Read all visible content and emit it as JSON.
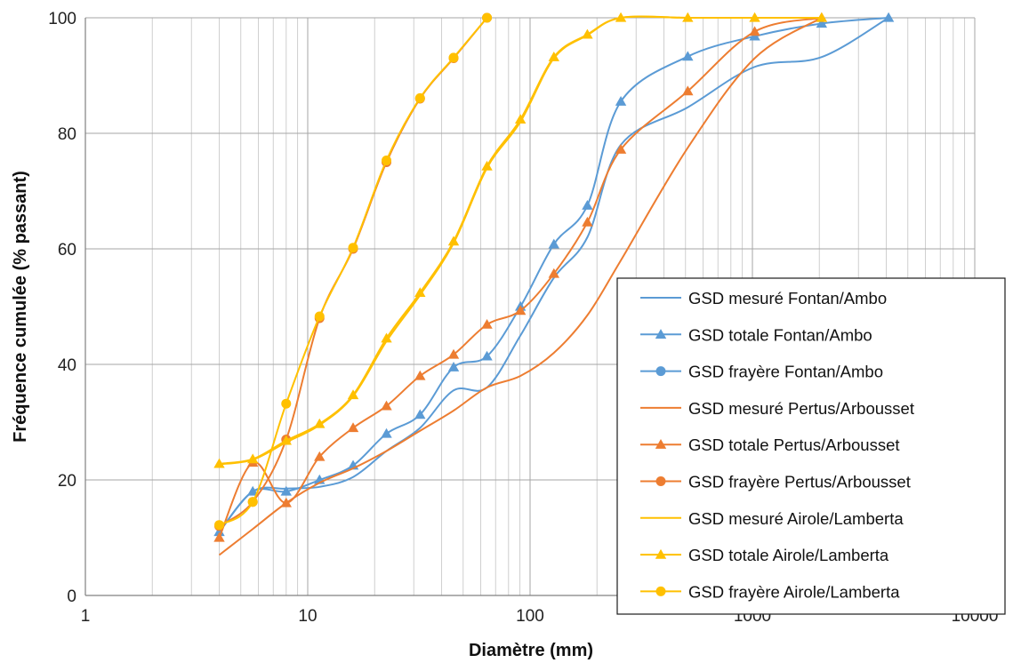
{
  "chart_data": {
    "type": "line",
    "xlabel": "Diamètre (mm)",
    "ylabel": "Fréquence cumulée (% passant)",
    "x_scale": "log",
    "xlim": [
      1,
      10000
    ],
    "ylim": [
      0,
      100
    ],
    "x_ticks": [
      "1",
      "10",
      "100",
      "1000",
      "10000"
    ],
    "y_ticks": [
      "0",
      "20",
      "40",
      "60",
      "80",
      "100"
    ],
    "grid": true,
    "legend_position": "right",
    "series": [
      {
        "name": "GSD mesuré Fontan/Ambo",
        "color": "#5B9BD5",
        "marker": "none",
        "points": [
          [
            4,
            11
          ],
          [
            5.66,
            18
          ],
          [
            8,
            18.5
          ],
          [
            11.3,
            18.8
          ],
          [
            16,
            20.5
          ],
          [
            22.6,
            25
          ],
          [
            32,
            29
          ],
          [
            45.3,
            35.5
          ],
          [
            64,
            36
          ],
          [
            90.5,
            45
          ],
          [
            128,
            55
          ],
          [
            181,
            62
          ],
          [
            256,
            78
          ],
          [
            512,
            84.5
          ],
          [
            1024,
            91.5
          ],
          [
            2048,
            93.2
          ],
          [
            4096,
            100
          ]
        ]
      },
      {
        "name": "GSD totale Fontan/Ambo",
        "color": "#5B9BD5",
        "marker": "triangle",
        "points": [
          [
            4,
            11
          ],
          [
            5.66,
            18
          ],
          [
            8,
            18
          ],
          [
            11.3,
            20
          ],
          [
            16,
            22.5
          ],
          [
            22.6,
            28
          ],
          [
            32,
            31.3
          ],
          [
            45.3,
            39.5
          ],
          [
            64,
            41.4
          ],
          [
            90.5,
            50
          ],
          [
            128,
            60.8
          ],
          [
            181,
            67.5
          ],
          [
            256,
            85.5
          ],
          [
            512,
            93.3
          ],
          [
            1024,
            96.8
          ],
          [
            2048,
            99
          ],
          [
            4096,
            100
          ]
        ]
      },
      {
        "name": "GSD frayère Fontan/Ambo",
        "color": "#5B9BD5",
        "marker": "circle",
        "points": []
      },
      {
        "name": "GSD mesuré Pertus/Arbousset",
        "color": "#ED7D31",
        "marker": "none",
        "points": [
          [
            4,
            7
          ],
          [
            5.66,
            11.5
          ],
          [
            8,
            16
          ],
          [
            11.3,
            19.5
          ],
          [
            16,
            22
          ],
          [
            22.6,
            25
          ],
          [
            32,
            28.5
          ],
          [
            45.3,
            32
          ],
          [
            64,
            36
          ],
          [
            90.5,
            38
          ],
          [
            128,
            42
          ],
          [
            181,
            48.5
          ],
          [
            256,
            58
          ],
          [
            512,
            77.5
          ],
          [
            1024,
            93
          ],
          [
            2048,
            100
          ]
        ]
      },
      {
        "name": "GSD totale Pertus/Arbousset",
        "color": "#ED7D31",
        "marker": "triangle",
        "points": [
          [
            4,
            10
          ],
          [
            5.66,
            23
          ],
          [
            8,
            16
          ],
          [
            11.3,
            24
          ],
          [
            16,
            29
          ],
          [
            22.6,
            32.8
          ],
          [
            32,
            38
          ],
          [
            45.3,
            41.7
          ],
          [
            64,
            46.9
          ],
          [
            90.5,
            49.3
          ],
          [
            128,
            55.7
          ],
          [
            181,
            64.6
          ],
          [
            256,
            77.2
          ],
          [
            512,
            87.3
          ],
          [
            1024,
            97.6
          ],
          [
            2048,
            100
          ]
        ]
      },
      {
        "name": "GSD frayère Pertus/Arbousset",
        "color": "#ED7D31",
        "marker": "circle",
        "points": [
          [
            4,
            12
          ],
          [
            5.66,
            16.2
          ],
          [
            8,
            27
          ],
          [
            11.3,
            48
          ],
          [
            16,
            60
          ],
          [
            22.6,
            75
          ],
          [
            32,
            86
          ],
          [
            45.3,
            93
          ],
          [
            64,
            100
          ]
        ]
      },
      {
        "name": "GSD mesuré Airole/Lamberta",
        "color": "#FFC000",
        "marker": "none",
        "points": [
          [
            4,
            22.7
          ],
          [
            5.66,
            23.5
          ],
          [
            8,
            26.5
          ],
          [
            11.3,
            29.5
          ],
          [
            16,
            34.5
          ],
          [
            22.6,
            44
          ],
          [
            32,
            52
          ],
          [
            45.3,
            61
          ],
          [
            64,
            74
          ],
          [
            90.5,
            82
          ],
          [
            128,
            93
          ],
          [
            181,
            97
          ],
          [
            256,
            100
          ],
          [
            512,
            100
          ],
          [
            1024,
            100
          ],
          [
            2048,
            100
          ]
        ]
      },
      {
        "name": "GSD totale Airole/Lamberta",
        "color": "#FFC000",
        "marker": "triangle",
        "points": [
          [
            4,
            22.8
          ],
          [
            5.66,
            23.6
          ],
          [
            8,
            26.8
          ],
          [
            11.3,
            29.7
          ],
          [
            16,
            34.7
          ],
          [
            22.6,
            44.5
          ],
          [
            32,
            52.4
          ],
          [
            45.3,
            61.3
          ],
          [
            64,
            74.3
          ],
          [
            90.5,
            82.4
          ],
          [
            128,
            93.2
          ],
          [
            181,
            97.1
          ],
          [
            256,
            100
          ],
          [
            512,
            100
          ],
          [
            1024,
            100
          ],
          [
            2048,
            100
          ]
        ]
      },
      {
        "name": "GSD frayère Airole/Lamberta",
        "color": "#FFC000",
        "marker": "circle",
        "points": [
          [
            4,
            12.2
          ],
          [
            5.66,
            16.2
          ],
          [
            8,
            33.2
          ],
          [
            11.3,
            48.3
          ],
          [
            16,
            60.2
          ],
          [
            22.6,
            75.3
          ],
          [
            32,
            86.1
          ],
          [
            45.3,
            93.1
          ],
          [
            64,
            100
          ]
        ]
      }
    ]
  }
}
